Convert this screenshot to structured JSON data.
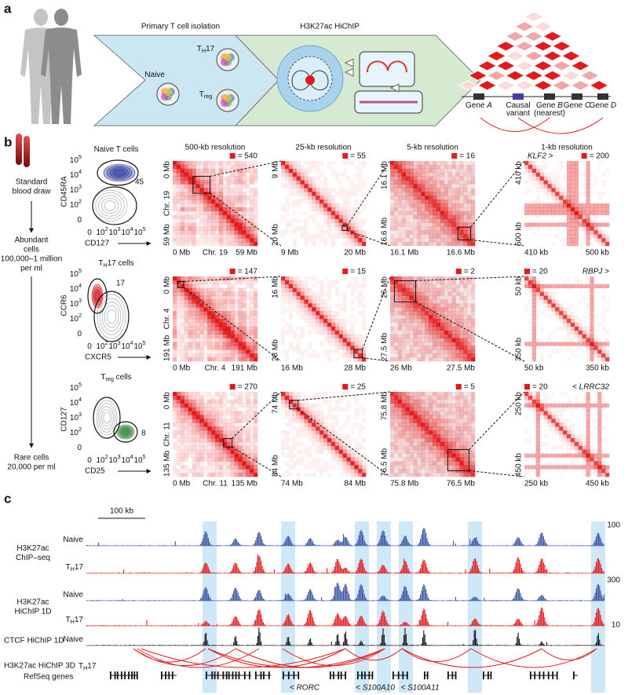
{
  "panel_a": {
    "label": "a",
    "isolation_title": "Primary T cell isolation",
    "hichip_title": "H3K27ac HiChIP",
    "cells": {
      "naive": [
        {
          "text": "Naive"
        }
      ],
      "th17": [
        {
          "text": "T"
        },
        {
          "text": "H",
          "sub": true
        },
        {
          "text": "17"
        }
      ],
      "treg": [
        {
          "text": "T"
        },
        {
          "text": "reg",
          "sub": true
        }
      ]
    },
    "genes": [
      {
        "lines": [
          [
            {
              "text": "Gene "
            },
            {
              "text": "A",
              "italic": true
            }
          ]
        ]
      },
      {
        "lines": [
          [
            {
              "text": "Causal"
            }
          ],
          [
            {
              "text": "variant"
            }
          ]
        ]
      },
      {
        "lines": [
          [
            {
              "text": "Gene "
            },
            {
              "text": "B",
              "italic": true
            }
          ],
          [
            {
              "text": "(nearest)"
            }
          ]
        ]
      },
      {
        "lines": [
          [
            {
              "text": "Gene "
            },
            {
              "text": "C",
              "italic": true
            }
          ]
        ]
      },
      {
        "lines": [
          [
            {
              "text": "Gene "
            },
            {
              "text": "D",
              "italic": true
            }
          ]
        ]
      }
    ]
  },
  "panel_b": {
    "label": "b",
    "steps": {
      "draw": [
        "Standard",
        "blood draw"
      ],
      "abundant": [
        "Abundant",
        "cells",
        "100,000–1 million",
        "per ml"
      ],
      "rare": [
        "Rare cells",
        "20,000 per ml"
      ]
    },
    "flow_ticks": [
      [
        {
          "text": "0"
        }
      ],
      [
        {
          "text": "10"
        },
        {
          "text": "2",
          "sup": true
        }
      ],
      [
        {
          "text": "10"
        },
        {
          "text": "3",
          "sup": true
        }
      ],
      [
        {
          "text": "10"
        },
        {
          "text": "4",
          "sup": true
        }
      ],
      [
        {
          "text": "10"
        },
        {
          "text": "5",
          "sup": true
        }
      ]
    ],
    "flow_plots": [
      {
        "title": [
          {
            "text": "Naive T cells"
          }
        ],
        "color": "#2a3a9c",
        "percent": 45,
        "y_label": "CD45RA",
        "x_label": "CD127"
      },
      {
        "title": [
          {
            "text": "T"
          },
          {
            "text": "H",
            "sub": true
          },
          {
            "text": "17 cells"
          }
        ],
        "color": "#d7191c",
        "percent": 17,
        "y_label": "CCR6",
        "x_label": "CXCR5"
      },
      {
        "title": [
          {
            "text": "T"
          },
          {
            "text": "reg",
            "sub": true
          },
          {
            "text": " cells"
          }
        ],
        "color": "#2e7d32",
        "percent": 8,
        "y_label": "CD127",
        "x_label": "CD25"
      }
    ],
    "resolutions": [
      "500-kb resolution",
      "25-kb resolution",
      "5-kb resolution",
      "1-kb resolution"
    ],
    "heatmap_rows": [
      {
        "gene": "KLF2 >",
        "maps": [
          {
            "max_label": "= 540",
            "labels": [
              "0 Mb",
              "Chr. 19",
              "59 Mb"
            ]
          },
          {
            "max_label": "= 55",
            "labels": [
              "9 Mb",
              "20 Mb"
            ]
          },
          {
            "max_label": "= 16",
            "labels": [
              "16.1 Mb",
              "16.6 Mb"
            ]
          },
          {
            "max_label": "= 200",
            "labels": [
              "410 kb",
              "500 kb"
            ]
          }
        ]
      },
      {
        "gene": "RBPJ >",
        "maps": [
          {
            "max_label": "= 147",
            "labels": [
              "0 Mb",
              "Chr. 4",
              "191 Mb"
            ]
          },
          {
            "max_label": "= 15",
            "labels": [
              "16 Mb",
              "28 Mb"
            ]
          },
          {
            "max_label": "= 2",
            "labels": [
              "26 Mb",
              "27.5 Mb"
            ]
          },
          {
            "max_label": "= 20",
            "labels": [
              "50 kb",
              "350 kb"
            ]
          }
        ]
      },
      {
        "gene": "< LRRC32",
        "maps": [
          {
            "max_label": "= 270",
            "labels": [
              "0 Mb",
              "Chr. 11",
              "135 Mb"
            ]
          },
          {
            "max_label": "= 25",
            "labels": [
              "74 Mb",
              "84 Mb"
            ]
          },
          {
            "max_label": "= 5",
            "labels": [
              "75.8 Mb",
              "76.5 Mb"
            ]
          },
          {
            "max_label": "= 20",
            "labels": [
              "250 kb",
              "450 kb"
            ]
          }
        ]
      }
    ]
  },
  "panel_c": {
    "label": "c",
    "scale_bar": "100 kb",
    "groups": [
      {
        "lines": [
          "H3K27ac",
          "ChIP–seq"
        ],
        "max": 100,
        "tracks": [
          {
            "sample": [
              {
                "text": "Naive"
              }
            ],
            "color": "#3953a4"
          },
          {
            "sample": [
              {
                "text": "T"
              },
              {
                "text": "H",
                "sub": true
              },
              {
                "text": "17"
              }
            ],
            "color": "#e31a1c"
          }
        ]
      },
      {
        "lines": [
          "H3K27ac",
          "HiChIP 1D"
        ],
        "max": 300,
        "tracks": [
          {
            "sample": [
              {
                "text": "Naive"
              }
            ],
            "color": "#3953a4"
          },
          {
            "sample": [
              {
                "text": "T"
              },
              {
                "text": "H",
                "sub": true
              },
              {
                "text": "17"
              }
            ],
            "color": "#e31a1c"
          }
        ]
      },
      {
        "lines": [
          "CTCF HiChIP 1D"
        ],
        "max": 10,
        "tracks": [
          {
            "sample": [
              {
                "text": "Naive"
              }
            ],
            "color": "#3953a4",
            "signal_color": "#111111"
          }
        ]
      }
    ],
    "loops": {
      "label": "H3K27ac HiChIP 3D",
      "sample": [
        {
          "text": "T"
        },
        {
          "text": "H",
          "sub": true
        },
        {
          "text": "17"
        }
      ],
      "color": "#e31a1c"
    },
    "refseq": {
      "label": "RefSeq genes",
      "genes": [
        "< RORC",
        "< S100A10",
        "< S100A11"
      ]
    }
  }
}
